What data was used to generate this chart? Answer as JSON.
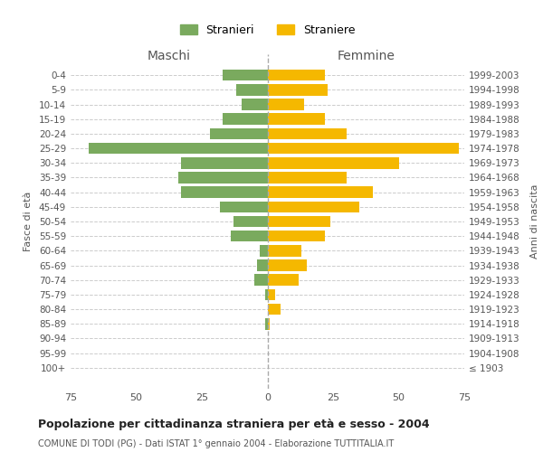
{
  "age_groups": [
    "0-4",
    "5-9",
    "10-14",
    "15-19",
    "20-24",
    "25-29",
    "30-34",
    "35-39",
    "40-44",
    "45-49",
    "50-54",
    "55-59",
    "60-64",
    "65-69",
    "70-74",
    "75-79",
    "80-84",
    "85-89",
    "90-94",
    "95-99",
    "100+"
  ],
  "birth_years": [
    "1999-2003",
    "1994-1998",
    "1989-1993",
    "1984-1988",
    "1979-1983",
    "1974-1978",
    "1969-1973",
    "1964-1968",
    "1959-1963",
    "1954-1958",
    "1949-1953",
    "1944-1948",
    "1939-1943",
    "1934-1938",
    "1929-1933",
    "1924-1928",
    "1919-1923",
    "1914-1918",
    "1909-1913",
    "1904-1908",
    "≤ 1903"
  ],
  "males": [
    17,
    12,
    10,
    17,
    22,
    68,
    33,
    34,
    33,
    18,
    13,
    14,
    3,
    4,
    5,
    1,
    0,
    1,
    0,
    0,
    0
  ],
  "females": [
    22,
    23,
    14,
    22,
    30,
    73,
    50,
    30,
    40,
    35,
    24,
    22,
    13,
    15,
    12,
    3,
    5,
    1,
    0,
    0,
    0
  ],
  "male_color": "#7aaa5e",
  "female_color": "#f5b800",
  "title": "Popolazione per cittadinanza straniera per età e sesso - 2004",
  "subtitle": "COMUNE DI TODI (PG) - Dati ISTAT 1° gennaio 2004 - Elaborazione TUTTITALIA.IT",
  "ylabel_left": "Fasce di età",
  "ylabel_right": "Anni di nascita",
  "xlabel_left": "Maschi",
  "xlabel_right": "Femmine",
  "legend_male": "Stranieri",
  "legend_female": "Straniere",
  "xlim": 75,
  "background_color": "#ffffff",
  "grid_color": "#cccccc"
}
